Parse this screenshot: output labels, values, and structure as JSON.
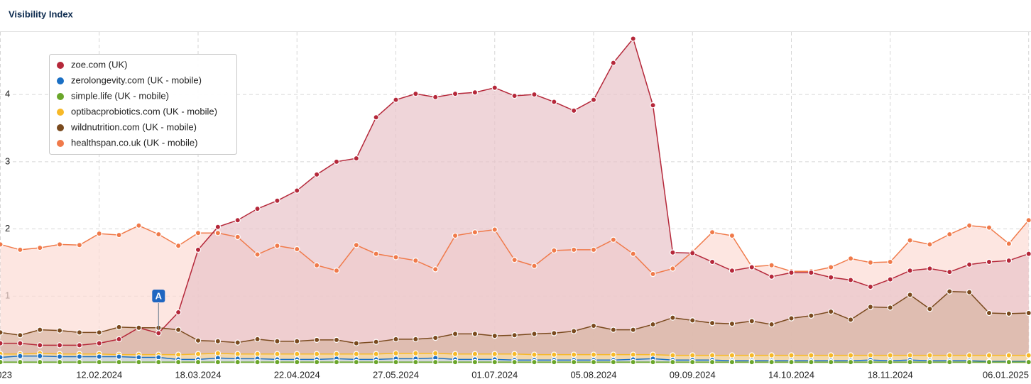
{
  "chart_data": {
    "type": "area",
    "title": "Visibility Index",
    "categories": [
      "023",
      null,
      null,
      null,
      null,
      "12.02.2024",
      null,
      null,
      null,
      null,
      "18.03.2024",
      null,
      null,
      null,
      null,
      "22.04.2024",
      null,
      null,
      null,
      null,
      "27.05.2024",
      null,
      null,
      null,
      null,
      "01.07.2024",
      null,
      null,
      null,
      null,
      "05.08.2024",
      null,
      null,
      null,
      null,
      "09.09.2024",
      null,
      null,
      null,
      null,
      "14.10.2024",
      null,
      null,
      null,
      null,
      "18.11.2024",
      null,
      null,
      null,
      null,
      null,
      null,
      "06.01.2025"
    ],
    "ylim": [
      0,
      4.93
    ],
    "yticks": [
      1,
      2,
      3,
      4
    ],
    "grid": true,
    "legend": "top-left",
    "annotations": [
      {
        "text": "A",
        "at": 8
      }
    ],
    "series": [
      {
        "name": "zoe.com (UK)",
        "color": "#b5283a",
        "fill": "#e8c3c9",
        "values": [
          0.3,
          0.3,
          0.27,
          0.27,
          0.27,
          0.3,
          0.36,
          0.53,
          0.45,
          0.76,
          1.69,
          2.03,
          2.13,
          2.3,
          2.42,
          2.57,
          2.81,
          3.0,
          3.05,
          3.66,
          3.92,
          4.01,
          3.96,
          4.01,
          4.03,
          4.1,
          3.98,
          4.0,
          3.89,
          3.76,
          3.92,
          4.47,
          4.83,
          3.84,
          1.65,
          1.64,
          1.51,
          1.38,
          1.43,
          1.29,
          1.35,
          1.35,
          1.28,
          1.24,
          1.14,
          1.25,
          1.38,
          1.41,
          1.36,
          1.47,
          1.51,
          1.53,
          1.63
        ]
      },
      {
        "name": "zerolongevity.com (UK - mobile)",
        "color": "#1a6fc4",
        "fill": "#c5d9ef",
        "values": [
          0.09,
          0.11,
          0.11,
          0.1,
          0.1,
          0.1,
          0.1,
          0.09,
          0.09,
          0.06,
          0.06,
          0.08,
          0.07,
          0.07,
          0.06,
          0.06,
          0.06,
          0.07,
          0.06,
          0.06,
          0.07,
          0.07,
          0.08,
          0.06,
          0.06,
          0.06,
          0.05,
          0.05,
          0.05,
          0.05,
          0.05,
          0.05,
          0.06,
          0.07,
          0.05,
          0.05,
          0.05,
          0.04,
          0.04,
          0.04,
          0.04,
          0.04,
          0.04,
          0.04,
          0.05,
          0.04,
          0.05,
          0.04,
          0.04,
          0.04,
          0.03,
          0.03,
          0.03
        ]
      },
      {
        "name": "simple.life (UK - mobile)",
        "color": "#6aa62a",
        "fill": "#d6e8c2",
        "values": [
          0.02,
          0.02,
          0.02,
          0.02,
          0.02,
          0.02,
          0.02,
          0.02,
          0.02,
          0.02,
          0.02,
          0.02,
          0.02,
          0.02,
          0.02,
          0.02,
          0.02,
          0.02,
          0.02,
          0.02,
          0.02,
          0.02,
          0.02,
          0.02,
          0.02,
          0.02,
          0.02,
          0.02,
          0.02,
          0.02,
          0.02,
          0.02,
          0.02,
          0.02,
          0.02,
          0.02,
          0.02,
          0.02,
          0.02,
          0.02,
          0.02,
          0.02,
          0.02,
          0.02,
          0.02,
          0.02,
          0.02,
          0.02,
          0.02,
          0.02,
          0.02,
          0.02,
          0.02
        ]
      },
      {
        "name": "optibacprobiotics.com (UK - mobile)",
        "color": "#f7b928",
        "fill": "#fbe3a8",
        "values": [
          0.14,
          0.14,
          0.15,
          0.14,
          0.14,
          0.14,
          0.13,
          0.13,
          0.13,
          0.13,
          0.14,
          0.15,
          0.14,
          0.14,
          0.14,
          0.14,
          0.14,
          0.14,
          0.14,
          0.14,
          0.15,
          0.15,
          0.15,
          0.14,
          0.14,
          0.14,
          0.14,
          0.13,
          0.13,
          0.13,
          0.13,
          0.13,
          0.13,
          0.13,
          0.12,
          0.12,
          0.12,
          0.12,
          0.12,
          0.12,
          0.12,
          0.12,
          0.12,
          0.12,
          0.12,
          0.12,
          0.12,
          0.12,
          0.12,
          0.12,
          0.12,
          0.12,
          0.12
        ]
      },
      {
        "name": "wildnutrition.com (UK - mobile)",
        "color": "#7a4a1e",
        "fill": "#d9b6a4",
        "values": [
          0.46,
          0.42,
          0.5,
          0.49,
          0.46,
          0.46,
          0.54,
          0.53,
          0.53,
          0.5,
          0.34,
          0.33,
          0.31,
          0.36,
          0.33,
          0.33,
          0.35,
          0.35,
          0.3,
          0.32,
          0.36,
          0.36,
          0.38,
          0.44,
          0.44,
          0.41,
          0.42,
          0.44,
          0.45,
          0.48,
          0.56,
          0.5,
          0.5,
          0.58,
          0.68,
          0.64,
          0.6,
          0.59,
          0.63,
          0.58,
          0.67,
          0.71,
          0.77,
          0.65,
          0.84,
          0.83,
          1.02,
          0.81,
          1.07,
          1.06,
          0.75,
          0.74,
          0.75
        ]
      },
      {
        "name": "healthspan.co.uk (UK - mobile)",
        "color": "#f07a4a",
        "fill": "#fcdcd4",
        "values": [
          1.77,
          1.69,
          1.72,
          1.77,
          1.76,
          1.93,
          1.91,
          2.05,
          1.92,
          1.75,
          1.94,
          1.94,
          1.88,
          1.62,
          1.75,
          1.7,
          1.46,
          1.38,
          1.76,
          1.63,
          1.58,
          1.53,
          1.4,
          1.9,
          1.95,
          1.99,
          1.54,
          1.45,
          1.68,
          1.69,
          1.69,
          1.84,
          1.63,
          1.33,
          1.41,
          1.66,
          1.95,
          1.9,
          1.44,
          1.46,
          1.37,
          1.37,
          1.43,
          1.56,
          1.5,
          1.51,
          1.83,
          1.77,
          1.92,
          2.05,
          2.02,
          1.78,
          2.13
        ]
      }
    ]
  }
}
